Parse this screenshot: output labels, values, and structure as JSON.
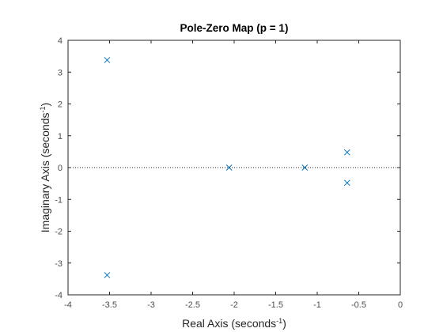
{
  "chart_data": {
    "type": "scatter",
    "title": "Pole-Zero Map (p = 1)",
    "xlabel": "Real Axis (seconds",
    "xlabel_sup": "-1",
    "xlabel_end": ")",
    "ylabel": "Imaginary Axis (seconds",
    "ylabel_sup": "-1",
    "ylabel_end": ")",
    "xlim": [
      -4,
      0
    ],
    "ylim": [
      -4,
      4
    ],
    "xticks": [
      -4,
      -3.5,
      -3,
      -2.5,
      -2,
      -1.5,
      -1,
      -0.5,
      0
    ],
    "xtick_labels": [
      "-4",
      "-3.5",
      "-3",
      "-2.5",
      "-2",
      "-1.5",
      "-1",
      "-0.5",
      "0"
    ],
    "yticks": [
      -4,
      -3,
      -2,
      -1,
      0,
      1,
      2,
      3,
      4
    ],
    "ytick_labels": [
      "-4",
      "-3",
      "-2",
      "-1",
      "0",
      "1",
      "2",
      "3",
      "4"
    ],
    "grid": false,
    "marker": "x",
    "marker_color": "#0072bd",
    "zero_line": "dotted",
    "poles": [
      {
        "x": -3.53,
        "y": 3.38
      },
      {
        "x": -3.53,
        "y": -3.38
      },
      {
        "x": -2.06,
        "y": 0.0
      },
      {
        "x": -1.15,
        "y": 0.0
      },
      {
        "x": -0.64,
        "y": 0.48
      },
      {
        "x": -0.64,
        "y": -0.48
      }
    ]
  }
}
